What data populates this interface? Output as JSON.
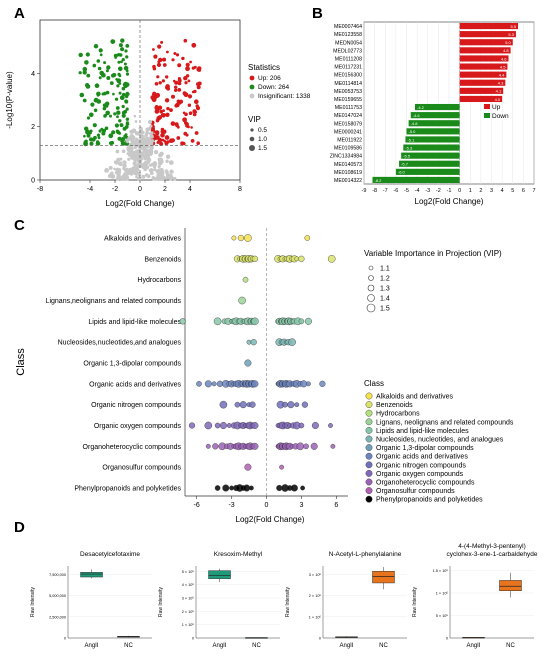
{
  "panels": {
    "A": "A",
    "B": "B",
    "C": "C",
    "D": "D"
  },
  "colors": {
    "up": "#d7191c",
    "down": "#1a8a1a",
    "insignificant": "#c8c8c8",
    "class_palette": [
      "#f4e04d",
      "#d9e36b",
      "#b5df80",
      "#9bd399",
      "#86c7a8",
      "#7bb6b3",
      "#6ea0ba",
      "#6d86bf",
      "#7070bb",
      "#8068b8",
      "#9b63b6",
      "#b060b2"
    ]
  },
  "chart_data": [
    {
      "panel": "A",
      "type": "scatter",
      "xlabel": "Log2(Fold Change)",
      "ylabel": "-Log10(P-value)",
      "xlim": [
        -8,
        8
      ],
      "ylim": [
        0,
        6
      ],
      "xticks": [
        "-8",
        "-4",
        "-2",
        "0",
        "2",
        "4",
        "8"
      ],
      "xtick_values": [
        -8,
        -4,
        -2,
        0,
        2,
        4,
        8
      ],
      "yticks": [
        "0",
        "2",
        "4"
      ],
      "ytick_values": [
        0,
        2,
        4
      ],
      "threshold": {
        "x": [
          -1,
          1
        ],
        "y": 1.3
      },
      "legend": {
        "statistics_title": "Statistics",
        "statistics": [
          "Up: 206",
          "Down: 264",
          "Insignificant: 1338"
        ],
        "vip_title": "VIP",
        "vip": [
          "0.5",
          "1.0",
          "1.5"
        ]
      },
      "series": [
        {
          "name": "Up",
          "count": 206
        },
        {
          "name": "Down",
          "count": 264
        },
        {
          "name": "Insignificant",
          "count": 1338
        }
      ]
    },
    {
      "panel": "B",
      "type": "bar",
      "orientation": "horizontal",
      "xlabel": "Log2(Fold Change)",
      "xlim": [
        -9,
        7
      ],
      "xticks": [
        "-9",
        "-8",
        "-7",
        "-6",
        "-5",
        "-4",
        "-3",
        "-2",
        "-1",
        "0",
        "1",
        "2",
        "3",
        "4",
        "5",
        "6",
        "7"
      ],
      "legend": [
        "Up",
        "Down"
      ],
      "categories": [
        "ME0007464",
        "ME0123558",
        "MEDN0054",
        "MEDL02773",
        "ME0111208",
        "ME0117231",
        "ME0156300",
        "ME0114814",
        "ME0053753",
        "ME0159655",
        "ME0111753",
        "ME0147024",
        "ME0158079",
        "ME0000241",
        "ME011922",
        "ME0109586",
        "ZINC1334984",
        "ME0140573",
        "ME0108619",
        "ME0014322"
      ],
      "values": [
        5.5,
        5.3,
        5.0,
        4.8,
        4.6,
        4.5,
        4.4,
        4.3,
        4.1,
        4.0,
        -4.2,
        -4.6,
        -4.8,
        -5.0,
        -5.1,
        -5.3,
        -5.5,
        -5.7,
        -6.0,
        -8.2
      ],
      "labels": [
        "5.5",
        "5.3",
        "5.0",
        "4.8",
        "4.6",
        "4.5",
        "4.4",
        "4.3",
        "4.1",
        "4.0",
        "-4.2",
        "-4.6",
        "-4.8",
        "-5.0",
        "-5.1",
        "-5.3",
        "-5.5",
        "-5.7",
        "-6.0",
        "-8.2"
      ]
    },
    {
      "panel": "C",
      "type": "scatter",
      "xlabel": "Log2(Fold Change)",
      "ylabel": "Class",
      "xlim": [
        -7,
        7
      ],
      "xticks": [
        "-6",
        "-3",
        "0",
        "3",
        "6"
      ],
      "xtick_values": [
        -6,
        -3,
        0,
        3,
        6
      ],
      "categories": [
        "Alkaloids and derivatives",
        "Benzenoids",
        "Hydrocarbons",
        "Lignans,neolignans and related compounds",
        "Lipids and lipid-like molecules",
        "Nucleosides,nucleotides,and analogues",
        "Organic 1,3-dipolar compounds",
        "Organic acids and derivatives",
        "Organic nitrogen compounds",
        "Organic oxygen compounds",
        "Organoheterocyclic compounds",
        "Organosulfur compounds",
        "Phenylpropanoids and polyketides"
      ],
      "points": [
        [
          -2.8,
          -2.2,
          -1.6,
          3.5
        ],
        [
          -2.5,
          -2.3,
          -2.1,
          -2.0,
          -1.9,
          -1.8,
          -1.7,
          -1.6,
          -1.5,
          -1.4,
          -1.3,
          -1.2,
          -1.0,
          1.0,
          1.2,
          1.4,
          1.6,
          1.8,
          2.0,
          2.2,
          2.4,
          2.6,
          3.0,
          5.6
        ],
        [
          -1.8
        ],
        [
          -2.1
        ],
        [
          -7.2,
          -4.2,
          -3.6,
          -3.3,
          -3.0,
          -2.8,
          -2.6,
          -2.4,
          -2.2,
          -2.0,
          -1.8,
          -1.6,
          -1.4,
          -1.3,
          -1.2,
          -1.1,
          -1.0,
          1.0,
          1.1,
          1.2,
          1.3,
          1.4,
          1.5,
          1.6,
          1.7,
          1.8,
          1.9,
          2.0,
          2.1,
          2.2,
          2.4,
          2.7,
          3.0,
          3.6
        ],
        [
          -1.5,
          -1.1,
          1.1,
          1.3,
          1.5,
          1.7,
          1.9,
          2.2
        ],
        [
          -1.6
        ],
        [
          -5.8,
          -5.0,
          -4.5,
          -4.0,
          -3.5,
          -3.2,
          -3.0,
          -2.8,
          -2.6,
          -2.4,
          -2.2,
          -2.0,
          -1.9,
          -1.8,
          -1.7,
          -1.6,
          -1.5,
          -1.4,
          -1.3,
          -1.2,
          -1.1,
          -1.0,
          1.0,
          1.1,
          1.2,
          1.3,
          1.4,
          1.5,
          1.6,
          1.7,
          1.8,
          2.0,
          2.2,
          2.4,
          2.6,
          2.9,
          3.2,
          3.6,
          4.8
        ],
        [
          -3.7,
          -2.5,
          -2.0,
          -1.5,
          -1.2,
          1.2,
          1.6,
          2.1,
          2.6,
          3.3
        ],
        [
          -6.4,
          -5.0,
          -4.2,
          -3.7,
          -3.2,
          -2.8,
          -2.5,
          -2.2,
          -2.0,
          -1.8,
          -1.6,
          -1.4,
          -1.2,
          -1.0,
          1.0,
          1.2,
          1.4,
          1.6,
          1.8,
          2.0,
          2.3,
          2.6,
          3.0,
          4.2,
          5.5
        ],
        [
          -5.0,
          -4.4,
          -3.8,
          -3.4,
          -3.1,
          -2.8,
          -2.6,
          -2.4,
          -2.2,
          -2.0,
          -1.8,
          -1.6,
          -1.4,
          -1.2,
          -1.0,
          1.0,
          1.1,
          1.2,
          1.3,
          1.4,
          1.5,
          1.6,
          1.7,
          1.8,
          2.0,
          2.2,
          2.5,
          2.9,
          3.4,
          4.1,
          5.7
        ],
        [
          -1.6,
          1.3
        ],
        [
          -4.2,
          -3.5,
          -3.0,
          -2.6,
          -2.3,
          -2.0,
          -1.7,
          -1.3,
          1.1,
          1.6,
          2.0,
          2.4,
          3.1
        ]
      ],
      "legend_vip_title": "Variable Importance in Projection (VIP)",
      "legend_vip": [
        "1.1",
        "1.2",
        "1.3",
        "1.4",
        "1.5"
      ],
      "legend_class_title": "Class",
      "legend_class": [
        "Alkaloids and derivatives",
        "Benzenoids",
        "Hydrocarbons",
        "Lignans, neolignans and related compounds",
        "Lipids and lipid-like molecules",
        "Nucleosides, nucleotides, and analogues",
        "Organic 1,3-dipolar compounds",
        "Organic acids and derivatives",
        "Organic nitrogen compounds",
        "Organic oxygen compounds",
        "Organoheterocyclic compounds",
        "Organosulfur compounds",
        "Phenylpropanoids and polyketides"
      ]
    },
    {
      "panel": "D",
      "type": "box",
      "plots": [
        {
          "title": "Desacetylcefotaxime",
          "ylabel": "Raw Intensity",
          "categories": [
            "AngII",
            "NC"
          ],
          "yticks": [
            "0",
            "2,500,000",
            "5,000,000",
            "7,500,000"
          ],
          "ytick_values": [
            0,
            2500000,
            5000000,
            7500000
          ],
          "ymax": 8500000,
          "boxes": [
            {
              "min": 7050000,
              "q1": 7200000,
              "median": 7550000,
              "q3": 7750000,
              "max": 8100000
            },
            {
              "min": 50000,
              "q1": 120000,
              "median": 160000,
              "q3": 200000,
              "max": 260000
            }
          ],
          "color": "#1f9a7a"
        },
        {
          "title": "Kresoxim-Methyl",
          "ylabel": "Raw Intensity",
          "categories": [
            "AngII",
            "NC"
          ],
          "yticks": [
            "0",
            "1 × 10⁵",
            "2 × 10⁵",
            "3 × 10⁵",
            "4 × 10⁵",
            "5 × 10⁵"
          ],
          "ytick_values": [
            0,
            100000,
            200000,
            300000,
            400000,
            500000
          ],
          "ymax": 540000,
          "boxes": [
            {
              "min": 420000,
              "q1": 445000,
              "median": 470000,
              "q3": 505000,
              "max": 520000
            },
            {
              "min": 0,
              "q1": 1000,
              "median": 2000,
              "q3": 3000,
              "max": 4000
            }
          ],
          "color": "#1f9a7a"
        },
        {
          "title": "N-Acetyl-L-phenylalanine",
          "ylabel": "Raw Intensity",
          "categories": [
            "AngII",
            "NC"
          ],
          "yticks": [
            "0",
            "1 × 10⁶",
            "2 × 10⁶",
            "3 × 10⁶"
          ],
          "ytick_values": [
            0,
            1000000,
            2000000,
            3000000
          ],
          "ymax": 3400000,
          "boxes": [
            {
              "min": 0,
              "q1": 20000,
              "median": 40000,
              "q3": 60000,
              "max": 80000
            },
            {
              "min": 2300000,
              "q1": 2600000,
              "median": 2900000,
              "q3": 3150000,
              "max": 3350000
            }
          ],
          "color": "#e8741e"
        },
        {
          "title": "4-(4-Methyl-3-pentenyl)cyclohex-3-ene-1-carbaldehyde",
          "ylabel": "Raw Intensity",
          "categories": [
            "AngII",
            "NC"
          ],
          "yticks": [
            "0",
            "5 × 10⁵",
            "1 × 10⁶",
            "1.5 × 10⁶"
          ],
          "ytick_values": [
            0,
            500000,
            1000000,
            1500000
          ],
          "ymax": 1600000,
          "boxes": [
            {
              "min": 0,
              "q1": 5000,
              "median": 10000,
              "q3": 15000,
              "max": 20000
            },
            {
              "min": 900000,
              "q1": 1050000,
              "median": 1150000,
              "q3": 1280000,
              "max": 1450000
            }
          ],
          "color": "#e8741e"
        }
      ]
    }
  ]
}
